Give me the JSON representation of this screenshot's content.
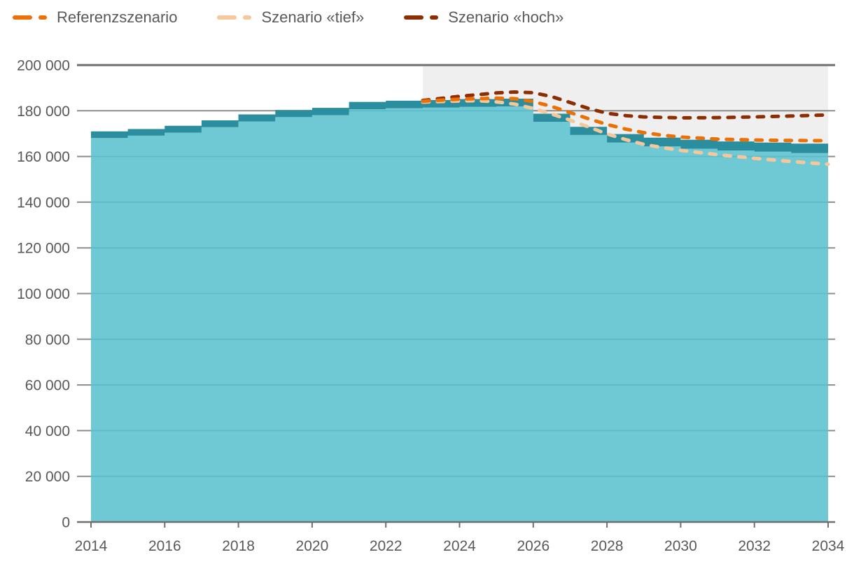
{
  "legend": {
    "items": [
      {
        "label": "Referenzszenario",
        "color": "#ed7004"
      },
      {
        "label": "Szenario «tief»",
        "color": "#f6c79a"
      },
      {
        "label": "Szenario «hoch»",
        "color": "#8c2e02"
      }
    ]
  },
  "colors": {
    "area_light": "#6fc9d5",
    "area_dark": "#2a8e9e",
    "grid_overlay_on_area": "#5cbac9",
    "forecast_bg": "#efefef",
    "grid": "#8d8d8d",
    "grid_dark": "#6e6e6e",
    "axis_line": "#6e6e6e",
    "axis_text": "#595959",
    "referenz": "#ed7004",
    "tief": "#f6c79a",
    "hoch": "#8c2e02"
  },
  "chart_data": {
    "type": "area",
    "title": "",
    "xlabel": "",
    "ylabel": "",
    "xlim": [
      2014,
      2034
    ],
    "ylim": [
      0,
      200000
    ],
    "grid": true,
    "legend_position": "top-left",
    "forecast_band": {
      "start": 2023,
      "end": 2034
    },
    "x_ticks": [
      2014,
      2016,
      2018,
      2020,
      2022,
      2024,
      2026,
      2028,
      2030,
      2032,
      2034
    ],
    "y_ticks": [
      {
        "value": 0,
        "label": "0"
      },
      {
        "value": 20000,
        "label": "20 000"
      },
      {
        "value": 40000,
        "label": "40 000"
      },
      {
        "value": 60000,
        "label": "60 000"
      },
      {
        "value": 80000,
        "label": "80 000"
      },
      {
        "value": 100000,
        "label": "100 000"
      },
      {
        "value": 120000,
        "label": "120 000"
      },
      {
        "value": 140000,
        "label": "140 000"
      },
      {
        "value": 160000,
        "label": "160 000"
      },
      {
        "value": 180000,
        "label": "180 000"
      },
      {
        "value": 200000,
        "label": "200 000"
      }
    ],
    "area_steps_note": "each entry = [year, total_top_value, dark_band_thickness]; step spans year..year+1",
    "area_steps": [
      [
        2014,
        171000,
        2900
      ],
      [
        2015,
        172000,
        2900
      ],
      [
        2016,
        173400,
        3000
      ],
      [
        2017,
        175800,
        3000
      ],
      [
        2018,
        178400,
        3100
      ],
      [
        2019,
        180300,
        3100
      ],
      [
        2020,
        181300,
        3200
      ],
      [
        2021,
        183900,
        3200
      ],
      [
        2022,
        184400,
        3300
      ],
      [
        2023,
        184700,
        3300
      ],
      [
        2024,
        185100,
        3400
      ],
      [
        2025,
        185300,
        3400
      ],
      [
        2026,
        178700,
        3500
      ],
      [
        2027,
        173000,
        3600
      ],
      [
        2028,
        169800,
        3700
      ],
      [
        2029,
        168200,
        3800
      ],
      [
        2030,
        167300,
        3900
      ],
      [
        2031,
        166600,
        4000
      ],
      [
        2032,
        166100,
        4000
      ],
      [
        2033,
        165600,
        4100
      ]
    ],
    "series": [
      {
        "name": "Szenario «tief»",
        "color": "#f6c79a",
        "points": [
          [
            2023,
            183800
          ],
          [
            2024,
            184300
          ],
          [
            2024.5,
            184400
          ],
          [
            2025,
            183900
          ],
          [
            2025.5,
            182900
          ],
          [
            2026,
            181000
          ],
          [
            2026.5,
            178600
          ],
          [
            2027,
            175900
          ],
          [
            2027.5,
            172900
          ],
          [
            2028,
            169900
          ],
          [
            2028.5,
            167400
          ],
          [
            2029,
            165300
          ],
          [
            2029.5,
            163900
          ],
          [
            2030,
            162700
          ],
          [
            2031,
            160800
          ],
          [
            2032,
            159200
          ],
          [
            2033,
            157800
          ],
          [
            2034,
            156600
          ]
        ]
      },
      {
        "name": "Szenario «hoch»",
        "color": "#8c2e02",
        "points": [
          [
            2023,
            184500
          ],
          [
            2024,
            186300
          ],
          [
            2025,
            187800
          ],
          [
            2025.5,
            188200
          ],
          [
            2026,
            187900
          ],
          [
            2026.5,
            186200
          ],
          [
            2027,
            183600
          ],
          [
            2027.5,
            181000
          ],
          [
            2028,
            178900
          ],
          [
            2028.5,
            177900
          ],
          [
            2029,
            177300
          ],
          [
            2030,
            176900
          ],
          [
            2031,
            177000
          ],
          [
            2032,
            177300
          ],
          [
            2033,
            177700
          ],
          [
            2034,
            178200
          ]
        ]
      },
      {
        "name": "Referenzszenario",
        "color": "#ed7004",
        "points": [
          [
            2023,
            184200
          ],
          [
            2024,
            185100
          ],
          [
            2025,
            185500
          ],
          [
            2025.5,
            185300
          ],
          [
            2026,
            184000
          ],
          [
            2026.5,
            181900
          ],
          [
            2027,
            179200
          ],
          [
            2027.5,
            176500
          ],
          [
            2028,
            174000
          ],
          [
            2028.5,
            172000
          ],
          [
            2029,
            170400
          ],
          [
            2029.5,
            169300
          ],
          [
            2030,
            168500
          ],
          [
            2031,
            167600
          ],
          [
            2032,
            167200
          ],
          [
            2033,
            167000
          ],
          [
            2034,
            166900
          ]
        ]
      }
    ]
  }
}
